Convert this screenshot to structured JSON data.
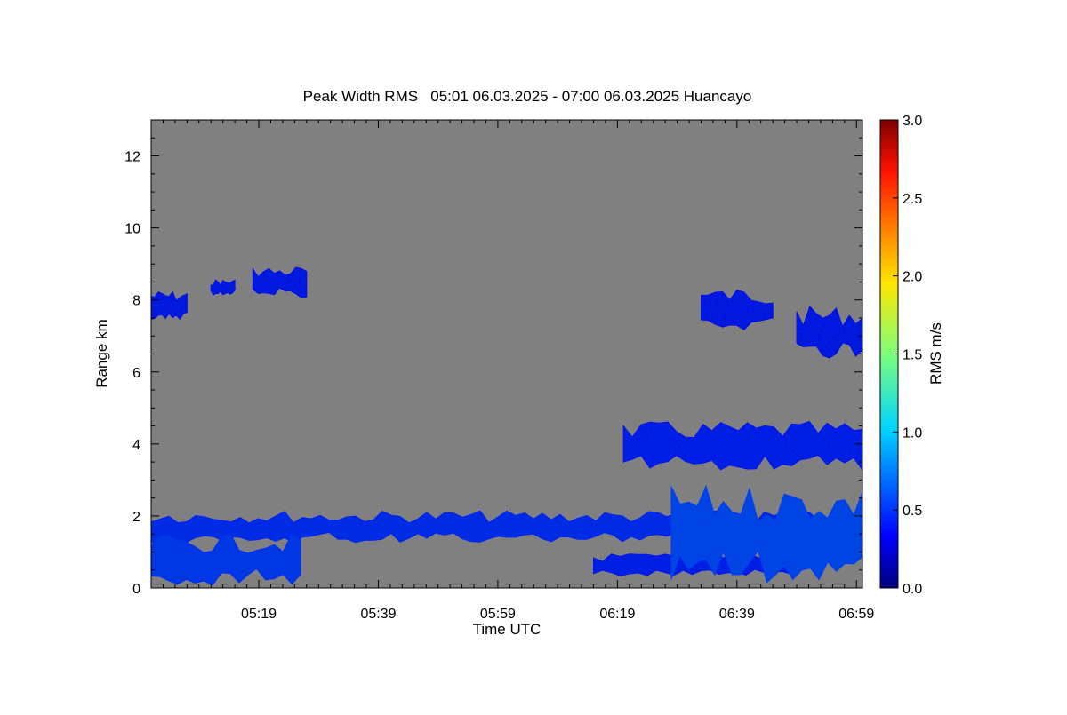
{
  "chart_data": {
    "type": "heatmap",
    "title": "Peak Width RMS   05:01 06.03.2025 - 07:00 06.03.2025 Huancayo",
    "xlabel": "Time UTC",
    "ylabel": "Range km",
    "x_range_minutes": [
      0,
      119
    ],
    "x_tick_values": [
      18,
      38,
      58,
      78,
      98,
      118
    ],
    "x_tick_labels": [
      "05:19",
      "05:39",
      "05:59",
      "06:19",
      "06:39",
      "06:59"
    ],
    "ylim": [
      0,
      13
    ],
    "y_ticks": [
      0,
      2,
      4,
      6,
      8,
      10,
      12
    ],
    "colorbar": {
      "label": "RMS m/s",
      "range": [
        0.0,
        3.0
      ],
      "ticks": [
        0.0,
        0.5,
        1.0,
        1.5,
        2.0,
        2.5,
        3.0
      ],
      "tick_labels": [
        "0.0",
        "0.5",
        "1.0",
        "1.5",
        "2.0",
        "2.5",
        "3.0"
      ],
      "colormap": "jet"
    },
    "background_color": "#808080",
    "echo_regions": [
      {
        "name": "upper-cloud-left",
        "x_minutes": [
          0,
          6
        ],
        "y_km": [
          7.4,
          8.3
        ],
        "rms": 0.35
      },
      {
        "name": "upper-cloud-small",
        "x_minutes": [
          10,
          14
        ],
        "y_km": [
          8.1,
          8.6
        ],
        "rms": 0.35
      },
      {
        "name": "upper-cloud-mid",
        "x_minutes": [
          17,
          26
        ],
        "y_km": [
          8.0,
          9.0
        ],
        "rms": 0.35
      },
      {
        "name": "upper-cloud-right-1",
        "x_minutes": [
          92,
          104
        ],
        "y_km": [
          7.1,
          8.4
        ],
        "rms": 0.35
      },
      {
        "name": "upper-cloud-right-2",
        "x_minutes": [
          108,
          119
        ],
        "y_km": [
          6.3,
          7.9
        ],
        "rms": 0.35
      },
      {
        "name": "mid-layer",
        "x_minutes": [
          79,
          119
        ],
        "y_km": [
          3.2,
          4.7
        ],
        "rms": 0.4
      },
      {
        "name": "boundary-layer-upper",
        "x_minutes": [
          0,
          119
        ],
        "y_km": [
          1.2,
          2.2
        ],
        "rms": 0.45
      },
      {
        "name": "near-surface",
        "x_minutes": [
          0,
          25
        ],
        "y_km": [
          0.0,
          1.6
        ],
        "rms": 0.5
      },
      {
        "name": "low-layer-right",
        "x_minutes": [
          74,
          107
        ],
        "y_km": [
          0.3,
          1.0
        ],
        "rms": 0.4
      },
      {
        "name": "convective-right",
        "x_minutes": [
          87,
          119
        ],
        "y_km": [
          0.0,
          3.0
        ],
        "rms": 0.55
      }
    ]
  }
}
